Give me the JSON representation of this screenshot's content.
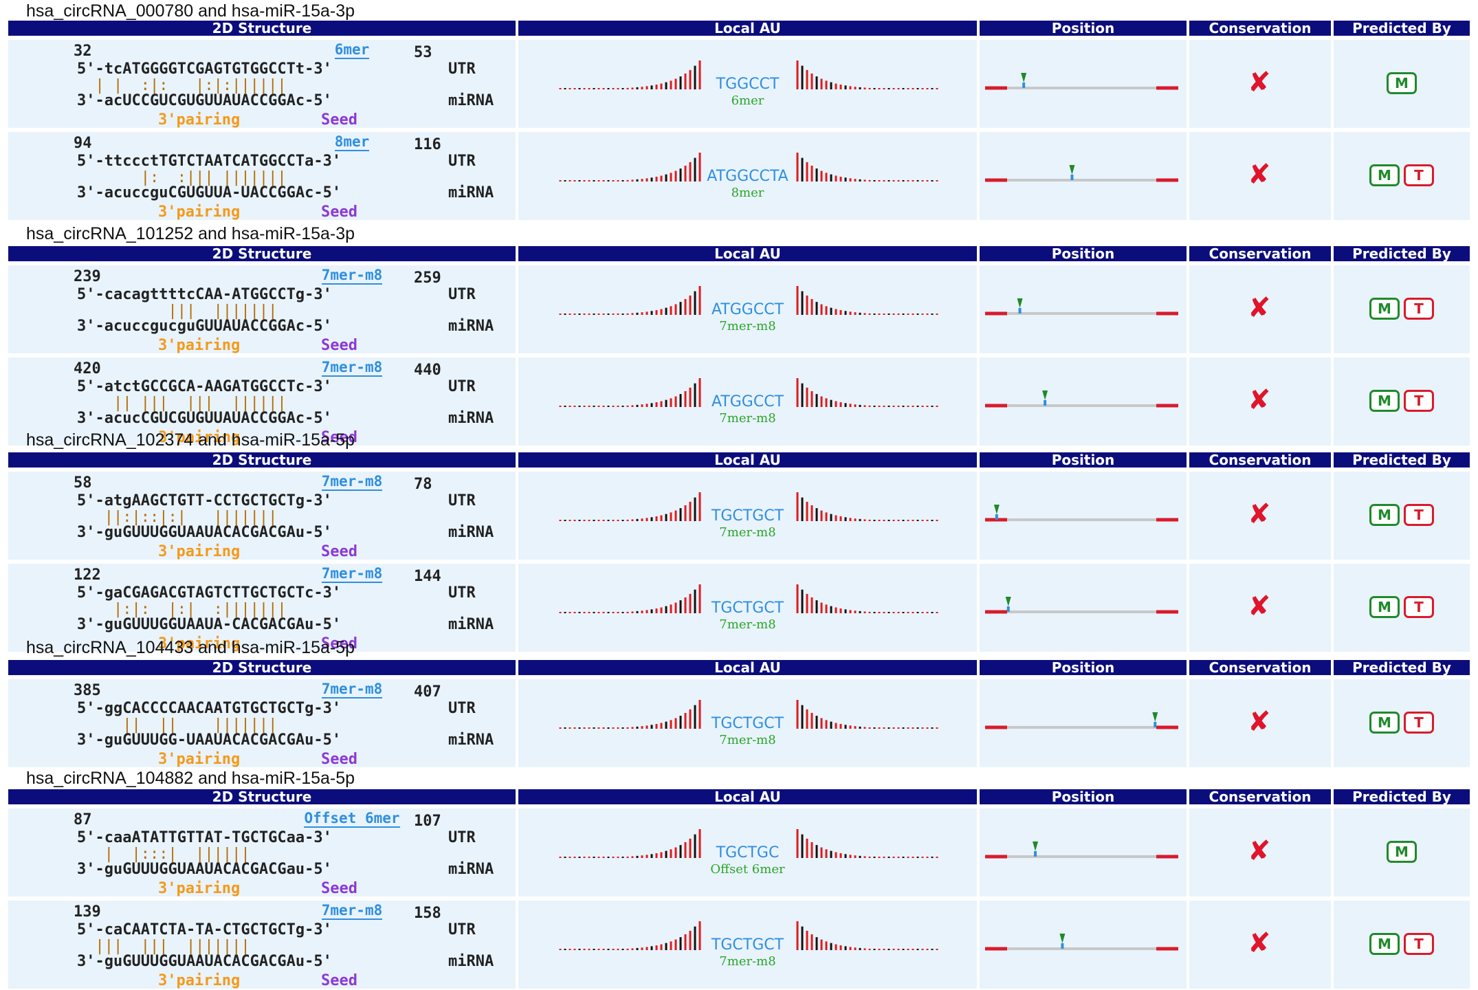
{
  "headers": {
    "structure": "2D Structure",
    "local_au": "Local AU",
    "position": "Position",
    "conservation": "Conservation",
    "predicted_by": "Predicted By"
  },
  "labels": {
    "utr": "UTR",
    "mirna": "miRNA",
    "pairing": "3'pairing",
    "seed": "Seed"
  },
  "groups": [
    {
      "title": "hsa_circRNA_000780 and hsa-miR-15a-3p",
      "sites": [
        {
          "start": "32",
          "end": "53",
          "site_type": "6mer",
          "utr": "5'-tcATGGGGTCGAGTGTGGCCTt-3'",
          "match": "  | |  :|:   |:|:||||||",
          "mirna": "3'-acUCCGUCGUGUUAUACCGGAc-5'",
          "au_seq": "TGGCCT",
          "au_type": "6mer",
          "position": 0.2,
          "conserved": false,
          "predicted_by": [
            "M"
          ]
        },
        {
          "start": "94",
          "end": "116",
          "site_type": "8mer",
          "utr": "5'-ttccctTGTCTAATCATGGCCTa-3'",
          "match": "       |:  :||| |||||||",
          "mirna": "3'-acuccguCGUGUUA-UACCGGAc-5'",
          "au_seq": "ATGGCCTA",
          "au_type": "8mer",
          "position": 0.45,
          "conserved": false,
          "predicted_by": [
            "M",
            "T"
          ]
        }
      ]
    },
    {
      "title": "hsa_circRNA_101252 and hsa-miR-15a-3p",
      "sites": [
        {
          "start": "239",
          "end": "259",
          "site_type": "7mer-m8",
          "utr": "5'-cacagttttcCAA-ATGGCCTg-3'",
          "match": "          |||  |||||||",
          "mirna": "3'-acuccgucguGUUAUACCGGAc-5'",
          "au_seq": "ATGGCCT",
          "au_type": "7mer-m8",
          "position": 0.18,
          "conserved": false,
          "predicted_by": [
            "M",
            "T"
          ]
        },
        {
          "start": "420",
          "end": "440",
          "site_type": "7mer-m8",
          "utr": "5'-atctGCCGCA-AAGATGGCCTc-3'",
          "match": "    || |||  |||  ||||||",
          "mirna": "3'-acucCGUCGUGUUAUACCGGAc-5'",
          "au_seq": "ATGGCCT",
          "au_type": "7mer-m8",
          "position": 0.31,
          "conserved": false,
          "predicted_by": [
            "M",
            "T"
          ]
        }
      ]
    },
    {
      "title": "hsa_circRNA_102374 and hsa-miR-15a-5p",
      "sites": [
        {
          "start": "58",
          "end": "78",
          "site_type": "7mer-m8",
          "utr": "5'-atgAAGCTGTT-CCTGCTGCTg-3'",
          "match": "   ||:|::|:|   |||||||",
          "mirna": "3'-guGUUUGGUAAUACACGACGAu-5'",
          "au_seq": "TGCTGCT",
          "au_type": "7mer-m8",
          "position": 0.06,
          "conserved": false,
          "predicted_by": [
            "M",
            "T"
          ]
        },
        {
          "start": "122",
          "end": "144",
          "site_type": "7mer-m8",
          "utr": "5'-gaCGAGACGTAGTCTTGCTGCTc-3'",
          "match": "    |:|:  |:|  :|||||||",
          "mirna": "3'-guGUUUGGUAAUA-CACGACGAu-5'",
          "au_seq": "TGCTGCT",
          "au_type": "7mer-m8",
          "position": 0.12,
          "conserved": false,
          "predicted_by": [
            "M",
            "T"
          ]
        }
      ]
    },
    {
      "title": "hsa_circRNA_104433 and hsa-miR-15a-5p",
      "sites": [
        {
          "start": "385",
          "end": "407",
          "site_type": "7mer-m8",
          "utr": "5'-ggCACCCCAACAATGTGCTGCTg-3'",
          "match": "     ||  ||    |||||||",
          "mirna": "3'-guGUUUGG-UAAUACACGACGAu-5'",
          "au_seq": "TGCTGCT",
          "au_type": "7mer-m8",
          "position": 0.88,
          "conserved": false,
          "predicted_by": [
            "M",
            "T"
          ]
        }
      ]
    },
    {
      "title": "hsa_circRNA_104882 and hsa-miR-15a-5p",
      "sites": [
        {
          "start": "87",
          "end": "107",
          "site_type": "Offset 6mer",
          "utr": "5'-caaATATTGTTAT-TGCTGCaa-3'",
          "match": "   |  |:::|  ||||||",
          "mirna": "3'-guGUUUGGUAAUACACGACGau-5'",
          "au_seq": "TGCTGC",
          "au_type": "Offset 6mer",
          "position": 0.26,
          "conserved": false,
          "predicted_by": [
            "M"
          ]
        },
        {
          "start": "139",
          "end": "158",
          "site_type": "7mer-m8",
          "utr": "5'-caCAATCTA-TA-CTGCTGCTg-3'",
          "match": "  |||  |||  |||||||",
          "mirna": "3'-guGUUUGGUAAUACACGACGAu-5'",
          "au_seq": "TGCTGCT",
          "au_type": "7mer-m8",
          "position": 0.4,
          "conserved": false,
          "predicted_by": [
            "M",
            "T"
          ]
        }
      ]
    }
  ],
  "colors": {
    "header_bg": "#0c0d7c",
    "row_bg": "#e9f3fc",
    "utr_green": "#2aa52a",
    "seed_blue": "#2e8fe0",
    "pairing_orange": "#f39a1a",
    "seed_purple": "#8a39d6",
    "cross_red": "#e0142a",
    "badge_m": "#1e8a2a",
    "badge_t": "#d81b2b"
  }
}
